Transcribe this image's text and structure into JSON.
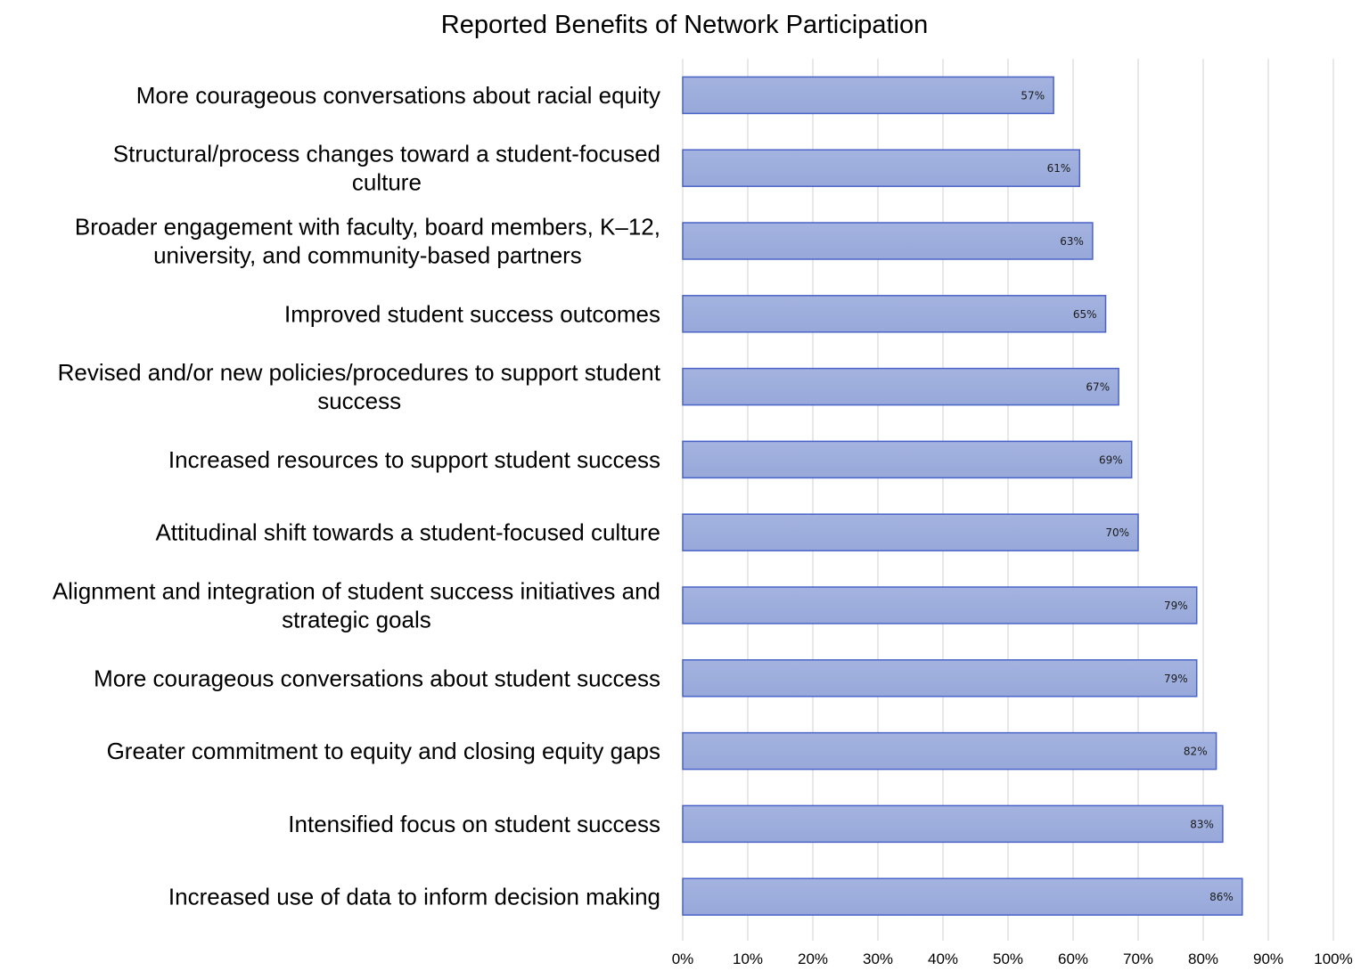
{
  "chart_data": {
    "type": "bar",
    "orientation": "horizontal",
    "title": "Reported Benefits of Network Participation",
    "xlabel": "",
    "ylabel": "",
    "xlim": [
      0,
      100
    ],
    "tick_values": [
      0,
      10,
      20,
      30,
      40,
      50,
      60,
      70,
      80,
      90,
      100
    ],
    "tick_labels": [
      "0%",
      "10%",
      "20%",
      "30%",
      "40%",
      "50%",
      "60%",
      "70%",
      "80%",
      "90%",
      "100%"
    ],
    "grid": "vertical",
    "legend": "none",
    "bar_fill_top": "#a4b3df",
    "bar_fill_bottom": "#97a8da",
    "bar_stroke": "#4a63c8",
    "categories": [
      [
        "More courageous conversations about racial equity"
      ],
      [
        "Structural/process changes toward a student-focused",
        "culture"
      ],
      [
        "Broader engagement with faculty, board members, K–12,",
        "university, and community-based partners"
      ],
      [
        "Improved student success outcomes"
      ],
      [
        "Revised and/or new policies/procedures to support student",
        "success"
      ],
      [
        "Increased resources to support student success"
      ],
      [
        "Attitudinal shift towards a student-focused culture"
      ],
      [
        "Alignment and integration of student success initiatives and",
        "strategic goals"
      ],
      [
        "More courageous conversations about student success"
      ],
      [
        "Greater commitment to equity and closing equity gaps"
      ],
      [
        "Intensified focus on student success"
      ],
      [
        "Increased use of data to inform decision making"
      ]
    ],
    "values": [
      57,
      61,
      63,
      65,
      67,
      69,
      70,
      79,
      79,
      82,
      83,
      86
    ],
    "data_labels": [
      "57%",
      "61%",
      "63%",
      "65%",
      "67%",
      "69%",
      "70%",
      "79%",
      "79%",
      "82%",
      "83%",
      "86%"
    ]
  }
}
